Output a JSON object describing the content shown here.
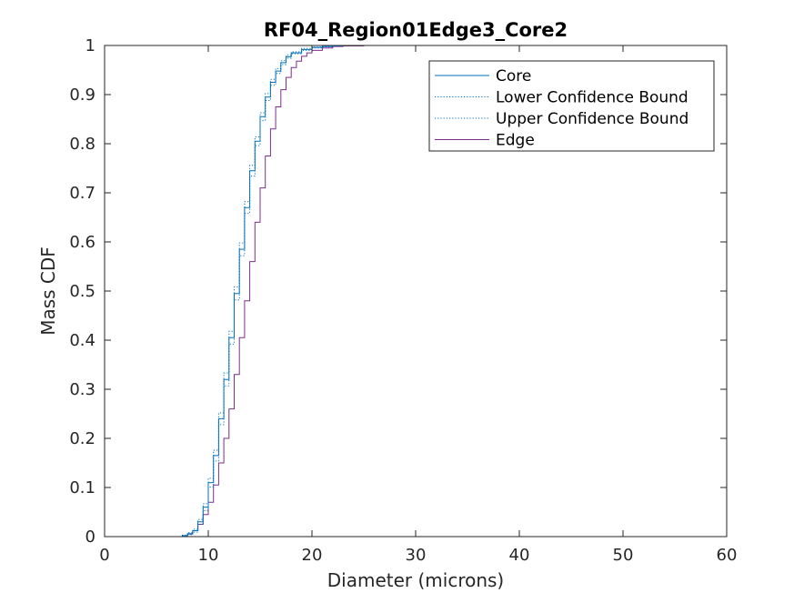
{
  "chart_data": {
    "type": "line",
    "title": "RF04_Region01Edge3_Core2",
    "xlabel": "Diameter (microns)",
    "ylabel": "Mass CDF",
    "xlim": [
      0,
      60
    ],
    "ylim": [
      0,
      1
    ],
    "xticks": [
      "0",
      "10",
      "20",
      "30",
      "40",
      "50",
      "60"
    ],
    "yticks": [
      "0",
      "0.1",
      "0.2",
      "0.3",
      "0.4",
      "0.5",
      "0.6",
      "0.7",
      "0.8",
      "0.9",
      "1"
    ],
    "grid": false,
    "legend_position": "top-right",
    "series": [
      {
        "name": "Core",
        "color": "#0072BD",
        "style": "stairs-solid",
        "x": [
          6.5,
          7.5,
          8.0,
          8.5,
          9.0,
          9.5,
          10.0,
          10.5,
          11.0,
          11.5,
          12.0,
          12.5,
          13.0,
          13.5,
          14.0,
          14.5,
          15.0,
          15.5,
          16.0,
          16.5,
          17.0,
          17.5,
          18.0,
          19.0,
          20.0,
          21.0,
          22.0,
          23.0,
          24.0,
          30.0,
          50.0
        ],
        "y": [
          0,
          0.002,
          0.006,
          0.012,
          0.03,
          0.06,
          0.11,
          0.165,
          0.24,
          0.32,
          0.405,
          0.495,
          0.585,
          0.67,
          0.745,
          0.805,
          0.855,
          0.895,
          0.925,
          0.948,
          0.965,
          0.977,
          0.985,
          0.992,
          0.996,
          0.998,
          0.999,
          1.0,
          1.0,
          1.0,
          1.0
        ]
      },
      {
        "name": "Lower Confidence Bound",
        "color": "#0072BD",
        "style": "stairs-dotted",
        "x": [
          6.5,
          7.5,
          8.0,
          8.5,
          9.0,
          9.5,
          10.0,
          10.5,
          11.0,
          11.5,
          12.0,
          12.5,
          13.0,
          13.5,
          14.0,
          14.5,
          15.0,
          15.5,
          16.0,
          16.5,
          17.0,
          17.5,
          18.0,
          19.0,
          20.0,
          21.0,
          22.0,
          23.0,
          24.0,
          30.0,
          50.0
        ],
        "y": [
          0,
          0.001,
          0.004,
          0.009,
          0.025,
          0.053,
          0.101,
          0.154,
          0.228,
          0.307,
          0.392,
          0.482,
          0.572,
          0.658,
          0.734,
          0.796,
          0.847,
          0.888,
          0.919,
          0.943,
          0.961,
          0.974,
          0.983,
          0.99,
          0.995,
          0.997,
          0.999,
          1.0,
          1.0,
          1.0,
          1.0
        ]
      },
      {
        "name": "Upper Confidence Bound",
        "color": "#0072BD",
        "style": "stairs-dotted",
        "x": [
          6.5,
          7.5,
          8.0,
          8.5,
          9.0,
          9.5,
          10.0,
          10.5,
          11.0,
          11.5,
          12.0,
          12.5,
          13.0,
          13.5,
          14.0,
          14.5,
          15.0,
          15.5,
          16.0,
          16.5,
          17.0,
          17.5,
          18.0,
          19.0,
          20.0,
          21.0,
          22.0,
          23.0,
          24.0,
          30.0,
          50.0
        ],
        "y": [
          0,
          0.003,
          0.008,
          0.015,
          0.035,
          0.067,
          0.119,
          0.176,
          0.252,
          0.333,
          0.418,
          0.508,
          0.598,
          0.682,
          0.756,
          0.814,
          0.863,
          0.902,
          0.931,
          0.953,
          0.969,
          0.98,
          0.987,
          0.994,
          0.997,
          0.999,
          1.0,
          1.0,
          1.0,
          1.0,
          1.0
        ]
      },
      {
        "name": "Edge",
        "color": "#7E2F8E",
        "style": "stairs-solid",
        "x": [
          7.0,
          8.0,
          8.5,
          9.0,
          9.5,
          10.0,
          10.5,
          11.0,
          11.5,
          12.0,
          12.5,
          13.0,
          13.5,
          14.0,
          14.5,
          15.0,
          15.5,
          16.0,
          16.5,
          17.0,
          17.5,
          18.0,
          18.5,
          19.0,
          19.5,
          20.0,
          21.0,
          22.0,
          23.0,
          25.0,
          30.0,
          50.0
        ],
        "y": [
          0,
          0.005,
          0.012,
          0.025,
          0.045,
          0.07,
          0.105,
          0.15,
          0.2,
          0.26,
          0.33,
          0.405,
          0.48,
          0.56,
          0.64,
          0.71,
          0.775,
          0.83,
          0.875,
          0.91,
          0.935,
          0.955,
          0.968,
          0.978,
          0.985,
          0.99,
          0.995,
          0.998,
          0.999,
          1.0,
          1.0,
          1.0
        ]
      }
    ]
  }
}
